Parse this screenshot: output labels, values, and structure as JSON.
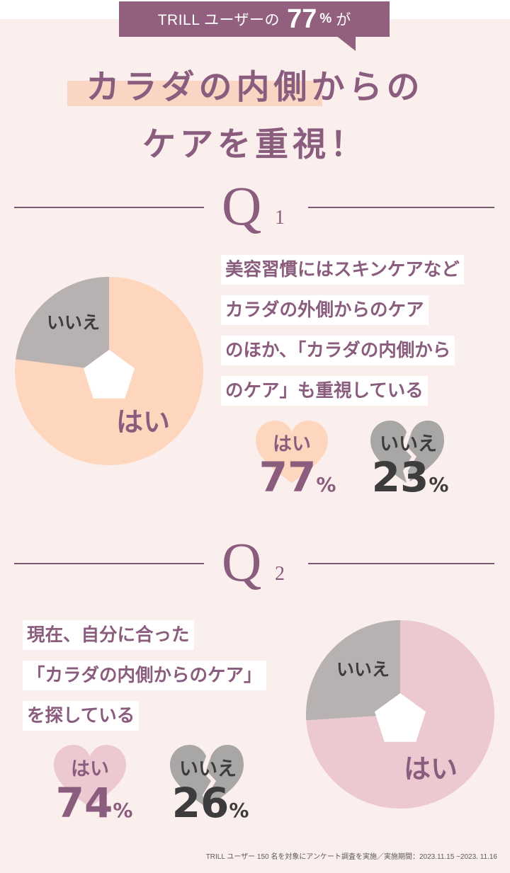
{
  "banner": {
    "text": "TRILL ユーザーの",
    "number": "77",
    "percent": "%",
    "suffix": "が"
  },
  "headline": {
    "line1": "カラダの内側からの",
    "line2": "ケアを重視！"
  },
  "colors": {
    "plum": "#8a5c7d",
    "peach": "#fdd6bd",
    "pink": "#ecc8d1",
    "gray": "#b7b1b1",
    "background": "#fbefed"
  },
  "q1": {
    "letter": "Q",
    "number": "1",
    "question_lines": [
      "美容習慣にはスキンケアなど",
      "カラダの外側からのケア",
      "のほか、「カラダの内側から",
      "のケア」も重視している"
    ],
    "yes_heart": {
      "label": "はい",
      "value": "77",
      "unit": "%",
      "icon": "heart-icon"
    },
    "no_heart": {
      "label": "いいえ",
      "value": "23",
      "unit": "%",
      "icon": "broken-heart-icon"
    }
  },
  "q2": {
    "letter": "Q",
    "number": "2",
    "question_lines": [
      "現在、自分に合った",
      "「カラダの内側からのケア」",
      "を探している"
    ],
    "yes_heart": {
      "label": "はい",
      "value": "74",
      "unit": "%",
      "icon": "heart-icon"
    },
    "no_heart": {
      "label": "いいえ",
      "value": "26",
      "unit": "%",
      "icon": "broken-heart-icon"
    }
  },
  "chart_data": [
    {
      "type": "pie",
      "title": "",
      "categories": [
        "はい",
        "いいえ"
      ],
      "values": [
        77,
        23
      ],
      "colors": [
        "#fdd6bd",
        "#b7b1b1"
      ]
    },
    {
      "type": "pie",
      "title": "",
      "categories": [
        "はい",
        "いいえ"
      ],
      "values": [
        74,
        26
      ],
      "colors": [
        "#ecc8d1",
        "#b7b1b1"
      ]
    }
  ],
  "footnote": "TRILL ユーザー 150 名を対象にアンケート調査を実施／実施期間：2023.11.15 ~2023. 11.16"
}
